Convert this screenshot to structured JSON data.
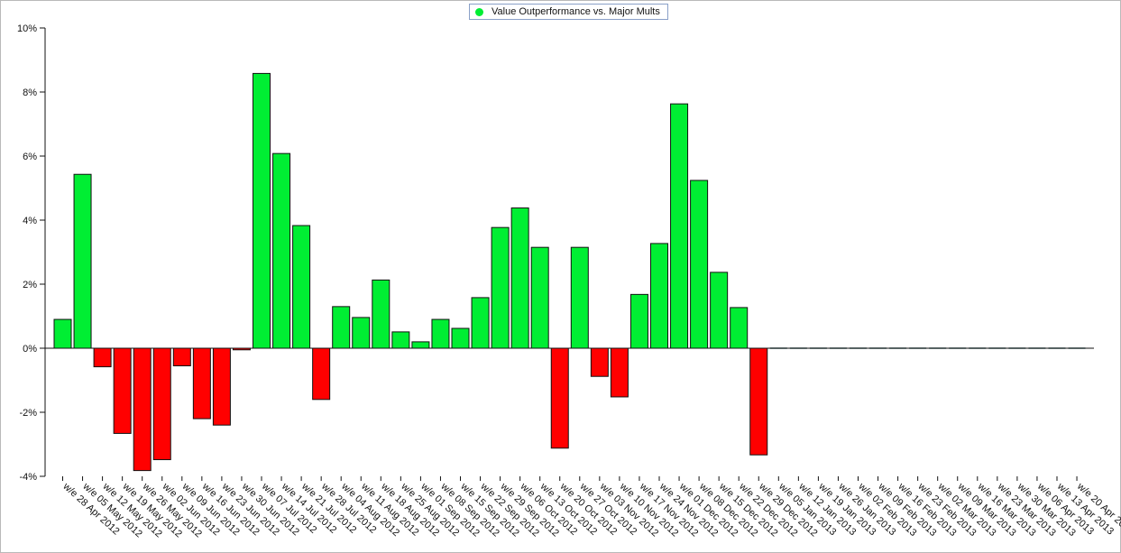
{
  "legend": {
    "label": "Value Outperformance vs. Major Mults"
  },
  "colors": {
    "positive": "#00ee33",
    "negative": "#ff0000",
    "stroke": "#111111",
    "flat": "#3a6b6b"
  },
  "chart_data": {
    "type": "bar",
    "title": "",
    "xlabel": "",
    "ylabel": "",
    "ylim": [
      -4,
      10
    ],
    "yticks": [
      10,
      8,
      6,
      4,
      2,
      0,
      -2,
      -4
    ],
    "ytick_labels": [
      "10%",
      "8%",
      "6%",
      "4%",
      "2%",
      "0%",
      "-2%",
      "-4%"
    ],
    "grid": false,
    "legend_position": "top-center",
    "categories": [
      "w/e 28 Apr 2012",
      "w/e 05 May 2012",
      "w/e 12 May 2012",
      "w/e 19 May 2012",
      "w/e 26 May 2012",
      "w/e 02 Jun 2012",
      "w/e 09 Jun 2012",
      "w/e 16 Jun 2012",
      "w/e 23 Jun 2012",
      "w/e 30 Jun 2012",
      "w/e 07 Jul 2012",
      "w/e 14 Jul 2012",
      "w/e 21 Jul 2012",
      "w/e 28 Jul 2012",
      "w/e 04 Aug 2012",
      "w/e 11 Aug 2012",
      "w/e 18 Aug 2012",
      "w/e 25 Aug 2012",
      "w/e 01 Sep 2012",
      "w/e 08 Sep 2012",
      "w/e 15 Sep 2012",
      "w/e 22 Sep 2012",
      "w/e 29 Sep 2012",
      "w/e 06 Oct 2012",
      "w/e 13 Oct 2012",
      "w/e 20 Oct 2012",
      "w/e 27 Oct 2012",
      "w/e 03 Nov 2012",
      "w/e 10 Nov 2012",
      "w/e 17 Nov 2012",
      "w/e 24 Nov 2012",
      "w/e 01 Dec 2012",
      "w/e 08 Dec 2012",
      "w/e 15 Dec 2012",
      "w/e 22 Dec 2012",
      "w/e 29 Dec 2012",
      "w/e 05 Jan 2013",
      "w/e 12 Jan 2013",
      "w/e 19 Jan 2013",
      "w/e 26 Jan 2013",
      "w/e 02 Feb 2013",
      "w/e 09 Feb 2013",
      "w/e 16 Feb 2013",
      "w/e 23 Feb 2013",
      "w/e 02 Mar 2013",
      "w/e 09 Mar 2013",
      "w/e 16 Mar 2013",
      "w/e 23 Mar 2013",
      "w/e 30 Mar 2013",
      "w/e 06 Apr 2013",
      "w/e 13 Apr 2013",
      "w/e 20 Apr 2013"
    ],
    "series": [
      {
        "name": "Value Outperformance vs. Major Mults",
        "values": [
          0.9,
          5.43,
          -0.58,
          -2.66,
          -3.82,
          -3.48,
          -0.55,
          -2.2,
          -2.4,
          -0.05,
          8.58,
          6.08,
          3.83,
          -1.6,
          1.3,
          0.96,
          2.13,
          0.51,
          0.2,
          0.9,
          0.62,
          1.58,
          3.77,
          4.38,
          3.15,
          -3.12,
          3.15,
          -0.88,
          -1.52,
          1.68,
          3.27,
          7.63,
          5.24,
          2.37,
          1.27,
          -3.33,
          0,
          0,
          0,
          0,
          0,
          0,
          0,
          0,
          0,
          0,
          0,
          0,
          0,
          0,
          0,
          0
        ]
      }
    ]
  }
}
